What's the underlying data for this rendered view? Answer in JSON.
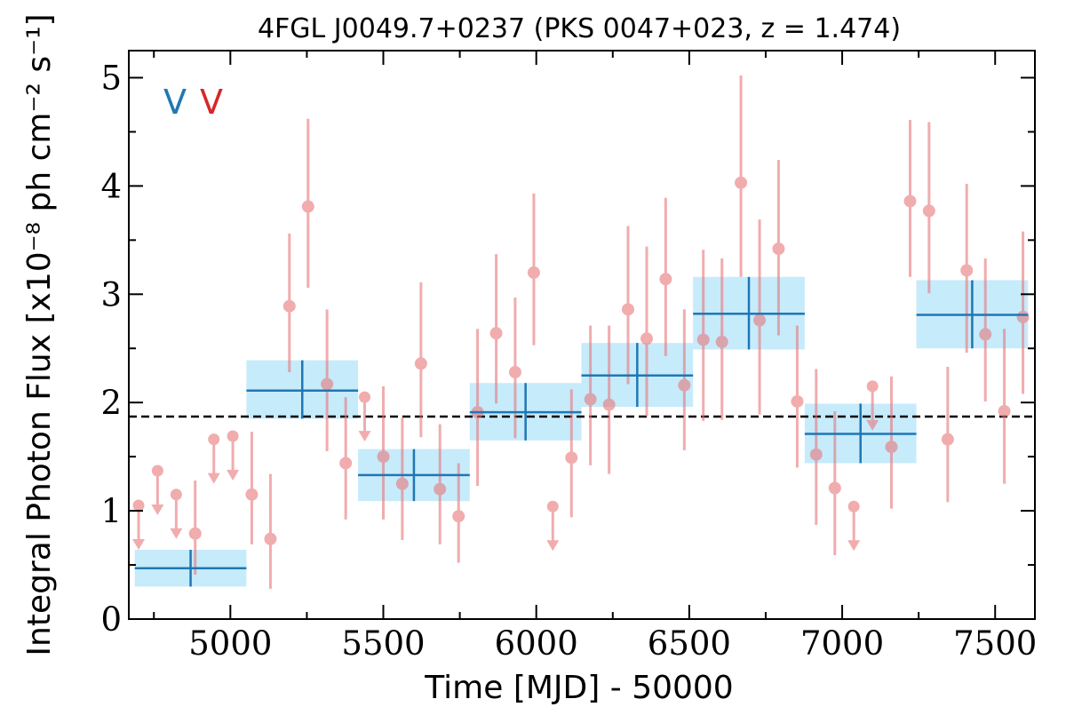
{
  "chart_data": {
    "type": "scatter",
    "title": "4FGL J0049.7+0237 (PKS 0047+023, z = 1.474)",
    "xlabel": "Time [MJD] - 50000",
    "ylabel": "Integral Photon Flux [x10⁻⁸ ph cm⁻² s⁻¹]",
    "xlim": [
      4668,
      7630
    ],
    "ylim": [
      0,
      5.25
    ],
    "x_ticks": [
      5000,
      5500,
      6000,
      6500,
      7000,
      7500
    ],
    "y_ticks": [
      0,
      1,
      2,
      3,
      4,
      5
    ],
    "x_tick_labels": [
      "5000",
      "5500",
      "6000",
      "6500",
      "7000",
      "7500"
    ],
    "y_tick_labels": [
      "0",
      "1",
      "2",
      "3",
      "4",
      "5"
    ],
    "legend": [
      {
        "label": "V",
        "color": "#1f77b4"
      },
      {
        "label": "V",
        "color": "#d62728"
      }
    ],
    "legend_position": "top-left",
    "grid": false,
    "mean_flux": 1.87,
    "colors": {
      "fine_points": "#e8767a",
      "coarse_line": "#1f77b4",
      "coarse_band": "#c6ebfb",
      "mean_line": "#000000"
    },
    "series": [
      {
        "bin_width_days": 365,
        "points": [
          {
            "x": 4870,
            "y": 0.47,
            "ylo": 0.3,
            "yhi": 0.64
          },
          {
            "x": 5235,
            "y": 2.11,
            "ylo": 1.85,
            "yhi": 2.39
          },
          {
            "x": 5600,
            "y": 1.33,
            "ylo": 1.09,
            "yhi": 1.57
          },
          {
            "x": 5965,
            "y": 1.91,
            "ylo": 1.65,
            "yhi": 2.18
          },
          {
            "x": 6330,
            "y": 2.25,
            "ylo": 1.96,
            "yhi": 2.55
          },
          {
            "x": 6695,
            "y": 2.82,
            "ylo": 2.49,
            "yhi": 3.16
          },
          {
            "x": 7060,
            "y": 1.71,
            "ylo": 1.44,
            "yhi": 1.99
          },
          {
            "x": 7425,
            "y": 2.81,
            "ylo": 2.5,
            "yhi": 3.13
          }
        ]
      },
      {
        "bin_width_days": 60,
        "points": [
          {
            "x": 4700,
            "y": 1.05,
            "upper_limit": true
          },
          {
            "x": 4762,
            "y": 1.37,
            "upper_limit": true
          },
          {
            "x": 4823,
            "y": 1.15,
            "upper_limit": true
          },
          {
            "x": 4885,
            "y": 0.79,
            "ylo": 0.41,
            "yhi": 1.28
          },
          {
            "x": 4946,
            "y": 1.66,
            "upper_limit": true
          },
          {
            "x": 5008,
            "y": 1.69,
            "upper_limit": true
          },
          {
            "x": 5070,
            "y": 1.15,
            "ylo": 0.69,
            "yhi": 1.73
          },
          {
            "x": 5131,
            "y": 0.74,
            "ylo": 0.28,
            "yhi": 1.34
          },
          {
            "x": 5193,
            "y": 2.89,
            "ylo": 2.28,
            "yhi": 3.56
          },
          {
            "x": 5254,
            "y": 3.81,
            "ylo": 3.06,
            "yhi": 4.62
          },
          {
            "x": 5316,
            "y": 2.17,
            "ylo": 1.55,
            "yhi": 2.86
          },
          {
            "x": 5377,
            "y": 1.44,
            "ylo": 0.92,
            "yhi": 2.05
          },
          {
            "x": 5439,
            "y": 2.05,
            "upper_limit": true
          },
          {
            "x": 5500,
            "y": 1.5,
            "ylo": 0.92,
            "yhi": 2.15
          },
          {
            "x": 5562,
            "y": 1.25,
            "ylo": 0.73,
            "yhi": 1.86
          },
          {
            "x": 5623,
            "y": 2.36,
            "ylo": 1.68,
            "yhi": 3.11
          },
          {
            "x": 5685,
            "y": 1.2,
            "ylo": 0.69,
            "yhi": 1.8
          },
          {
            "x": 5746,
            "y": 0.95,
            "ylo": 0.52,
            "yhi": 1.44
          },
          {
            "x": 5808,
            "y": 1.91,
            "ylo": 1.23,
            "yhi": 2.68
          },
          {
            "x": 5869,
            "y": 2.64,
            "ylo": 1.99,
            "yhi": 3.37
          },
          {
            "x": 5931,
            "y": 2.28,
            "ylo": 1.67,
            "yhi": 2.97
          },
          {
            "x": 5992,
            "y": 3.2,
            "ylo": 2.53,
            "yhi": 3.93
          },
          {
            "x": 6054,
            "y": 1.04,
            "upper_limit": true
          },
          {
            "x": 6115,
            "y": 1.49,
            "ylo": 0.94,
            "yhi": 2.12
          },
          {
            "x": 6177,
            "y": 2.03,
            "ylo": 1.42,
            "yhi": 2.71
          },
          {
            "x": 6238,
            "y": 1.98,
            "ylo": 1.34,
            "yhi": 2.71
          },
          {
            "x": 6300,
            "y": 2.86,
            "ylo": 2.17,
            "yhi": 3.63
          },
          {
            "x": 6361,
            "y": 2.59,
            "ylo": 1.87,
            "yhi": 3.44
          },
          {
            "x": 6423,
            "y": 3.14,
            "ylo": 2.43,
            "yhi": 3.89
          },
          {
            "x": 6484,
            "y": 2.16,
            "ylo": 1.56,
            "yhi": 2.86
          },
          {
            "x": 6546,
            "y": 2.58,
            "ylo": 1.83,
            "yhi": 3.41
          },
          {
            "x": 6607,
            "y": 2.56,
            "ylo": 1.84,
            "yhi": 3.33
          },
          {
            "x": 6669,
            "y": 4.03,
            "ylo": 3.16,
            "yhi": 5.02
          },
          {
            "x": 6730,
            "y": 2.76,
            "ylo": 1.89,
            "yhi": 3.69
          },
          {
            "x": 6792,
            "y": 3.42,
            "ylo": 2.62,
            "yhi": 4.24
          },
          {
            "x": 6853,
            "y": 2.01,
            "ylo": 1.4,
            "yhi": 2.71
          },
          {
            "x": 6915,
            "y": 1.52,
            "ylo": 0.87,
            "yhi": 2.31
          },
          {
            "x": 6976,
            "y": 1.21,
            "ylo": 0.59,
            "yhi": 1.92
          },
          {
            "x": 7038,
            "y": 1.04,
            "upper_limit": true
          },
          {
            "x": 7099,
            "y": 2.15,
            "upper_limit": true
          },
          {
            "x": 7161,
            "y": 1.59,
            "ylo": 1.02,
            "yhi": 2.24
          },
          {
            "x": 7222,
            "y": 3.86,
            "ylo": 3.16,
            "yhi": 4.61
          },
          {
            "x": 7284,
            "y": 3.77,
            "ylo": 3.01,
            "yhi": 4.59
          },
          {
            "x": 7345,
            "y": 1.66,
            "ylo": 1.08,
            "yhi": 2.33
          },
          {
            "x": 7407,
            "y": 3.22,
            "ylo": 2.46,
            "yhi": 4.02
          },
          {
            "x": 7468,
            "y": 2.63,
            "ylo": 2.01,
            "yhi": 3.33
          },
          {
            "x": 7530,
            "y": 1.92,
            "ylo": 1.25,
            "yhi": 2.68
          },
          {
            "x": 7591,
            "y": 2.79,
            "ylo": 2.08,
            "yhi": 3.58
          }
        ]
      }
    ]
  }
}
